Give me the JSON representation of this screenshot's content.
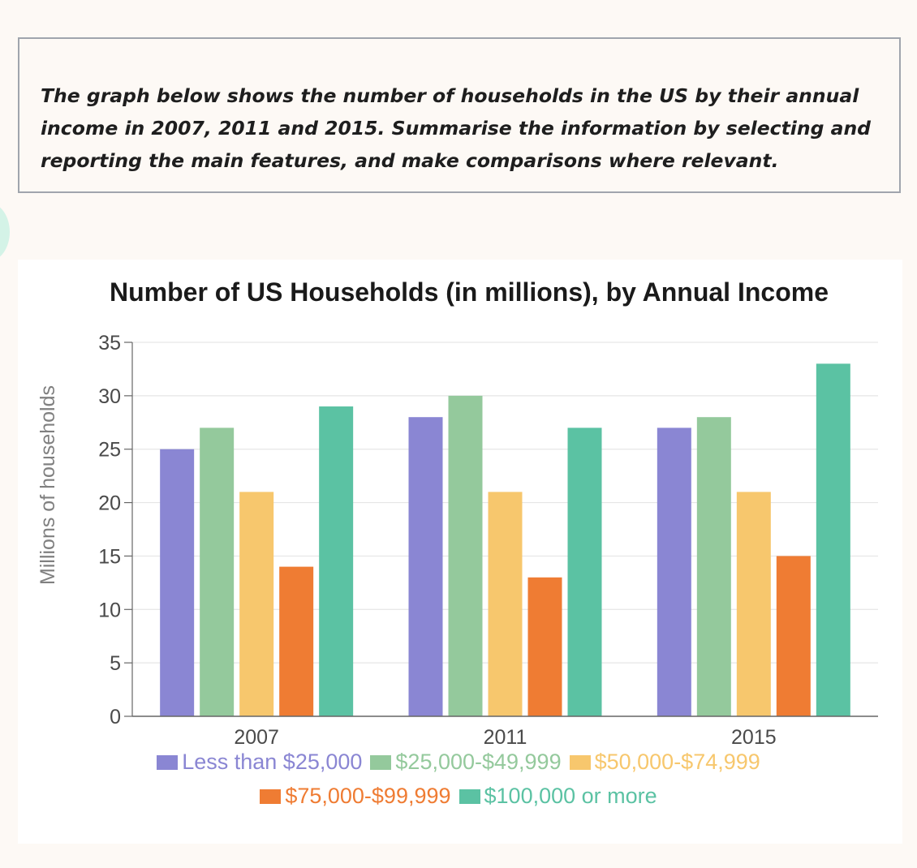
{
  "task": {
    "prompt": "The graph below shows the number of households in the US by their annual income in 2007, 2011 and 2015. Summarise the information by selecting and reporting the main features, and make comparisons where relevant."
  },
  "chart_data": {
    "type": "bar",
    "title": "Number of US Households (in millions), by Annual Income",
    "xlabel": "",
    "ylabel": "Millions of households",
    "categories": [
      "2007",
      "2011",
      "2015"
    ],
    "ylim": [
      0,
      35
    ],
    "yticks": [
      0,
      5,
      10,
      15,
      20,
      25,
      30,
      35
    ],
    "grid": true,
    "legend_position": "bottom",
    "series": [
      {
        "name": "Less than $25,000",
        "color": "#8a86d3",
        "values": [
          25,
          28,
          27
        ]
      },
      {
        "name": "$25,000-$49,999",
        "color": "#94c99c",
        "values": [
          27,
          30,
          28
        ]
      },
      {
        "name": "$50,000-$74,999",
        "color": "#f7c76d",
        "values": [
          21,
          21,
          21
        ]
      },
      {
        "name": "$75,000-$99,999",
        "color": "#ef7c33",
        "values": [
          14,
          13,
          15
        ]
      },
      {
        "name": "$100,000 or more",
        "color": "#5bc2a3",
        "values": [
          29,
          27,
          33
        ]
      }
    ]
  }
}
